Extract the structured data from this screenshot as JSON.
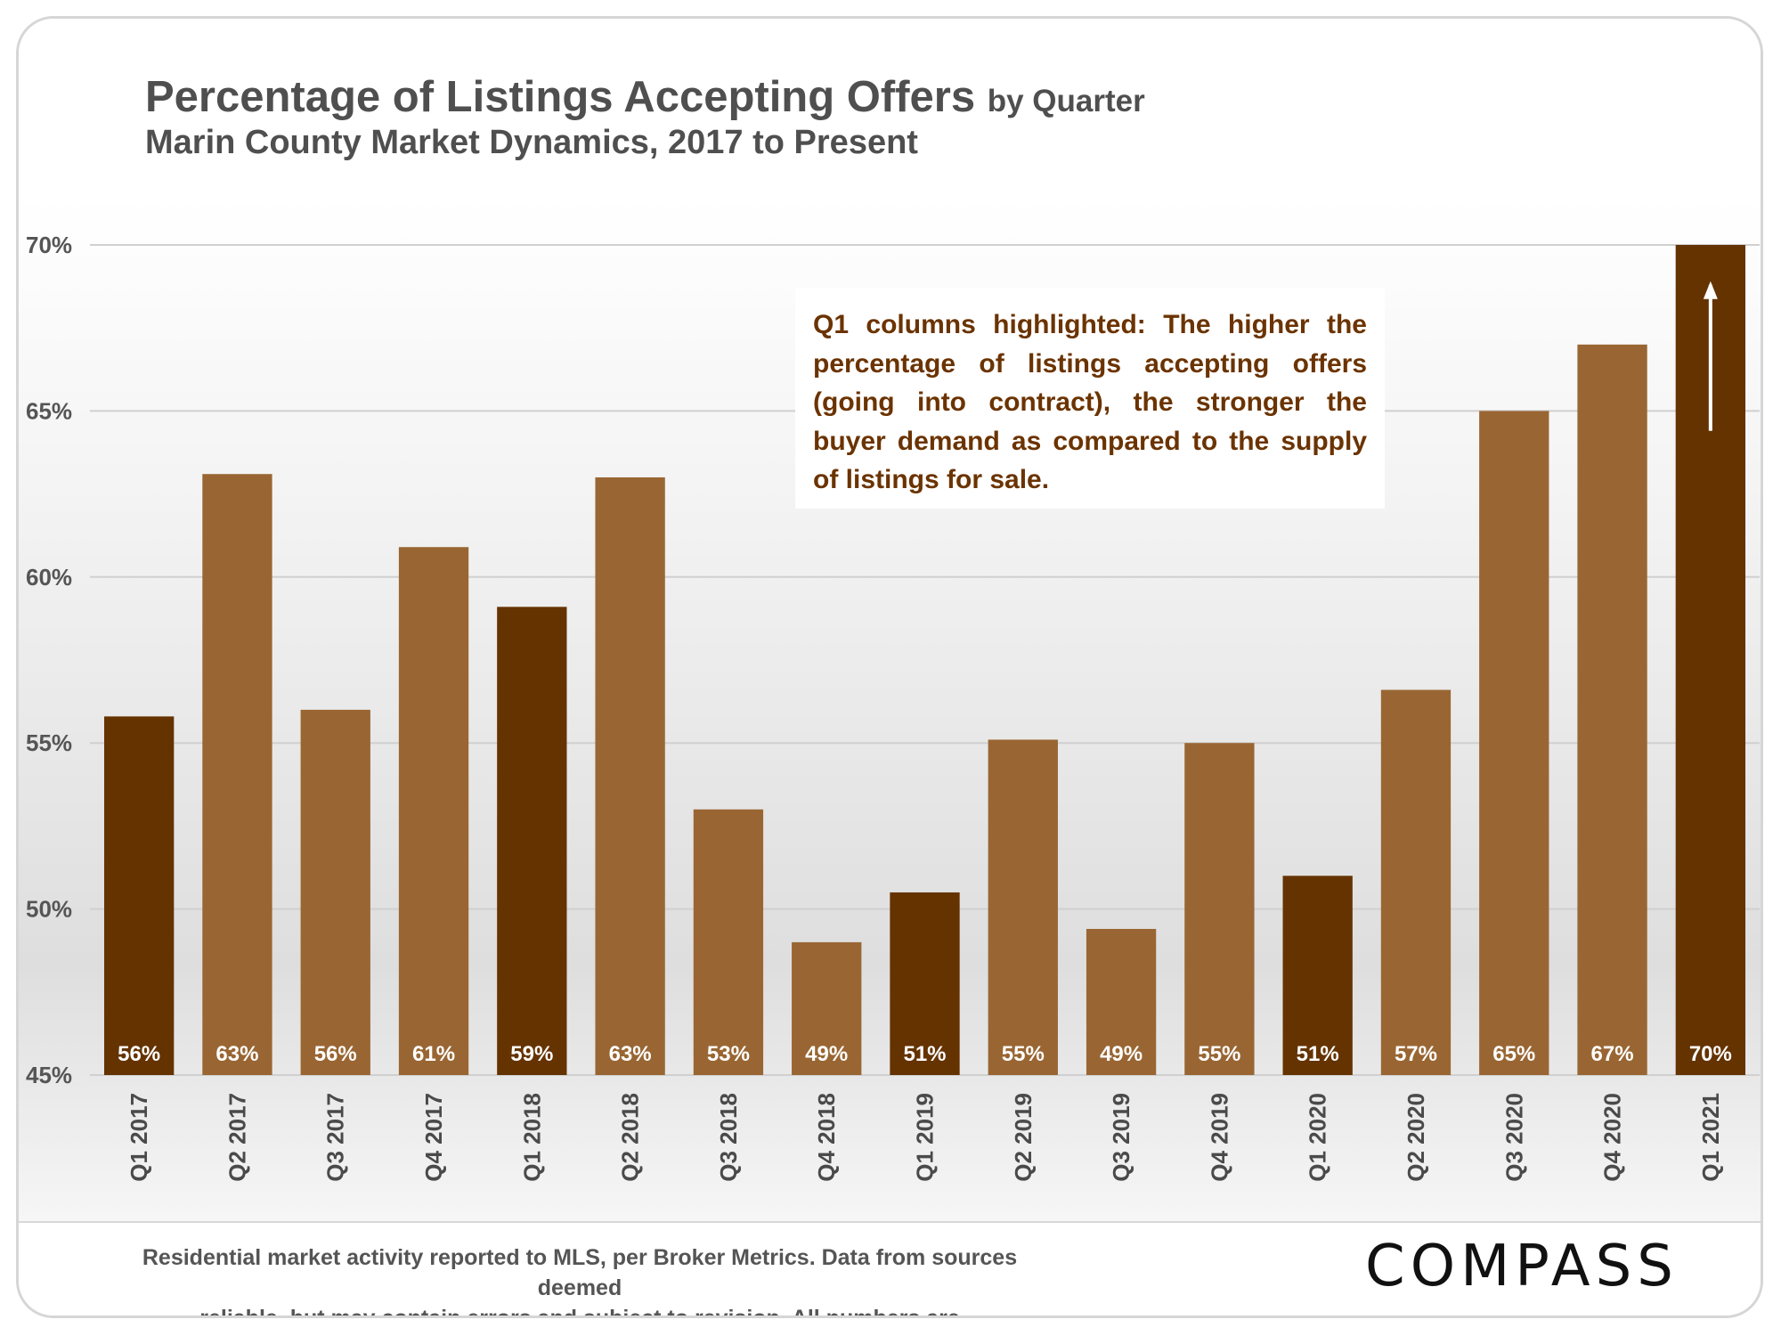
{
  "title": {
    "main": "Percentage of Listings Accepting Offers",
    "suffix": "by Quarter",
    "subtitle": "Marin County Market Dynamics, 2017 to Present"
  },
  "annotation": {
    "text": "Q1 columns highlighted: The higher the percentage of listings accepting offers (going into contract), the stronger the buyer demand as compared to the supply of listings for sale."
  },
  "footer": {
    "note_line1": "Residential market activity reported to MLS, per Broker Metrics. Data from sources deemed",
    "note_line2": "reliable, but may contain errors and subject to revision. All numbers are approximate.",
    "brand": "COMPASS"
  },
  "colors": {
    "highlight": "#653300",
    "regular": "#996633",
    "label": "#ffffff",
    "arrow": "#ffffff"
  },
  "chart_data": {
    "type": "bar",
    "title": "Percentage of Listings Accepting Offers by Quarter",
    "subtitle": "Marin County Market Dynamics, 2017 to Present",
    "categories": [
      "Q1 2017",
      "Q2 2017",
      "Q3 2017",
      "Q4 2017",
      "Q1 2018",
      "Q2 2018",
      "Q3 2018",
      "Q4 2018",
      "Q1 2019",
      "Q2 2019",
      "Q3 2019",
      "Q4 2019",
      "Q1 2020",
      "Q2 2020",
      "Q3 2020",
      "Q4 2020",
      "Q1 2021"
    ],
    "values": [
      55.8,
      63.1,
      56.0,
      60.9,
      59.1,
      63.0,
      53.0,
      49.0,
      50.5,
      55.1,
      49.4,
      55.0,
      51.0,
      56.6,
      65.0,
      67.0,
      70.0
    ],
    "data_labels": [
      "56%",
      "63%",
      "56%",
      "61%",
      "59%",
      "63%",
      "53%",
      "49%",
      "51%",
      "55%",
      "49%",
      "55%",
      "51%",
      "57%",
      "65%",
      "67%",
      "70%"
    ],
    "highlighted": [
      "Q1 2017",
      "Q1 2018",
      "Q1 2019",
      "Q1 2020",
      "Q1 2021"
    ],
    "ylim": [
      45,
      70
    ],
    "yticks": [
      45,
      50,
      55,
      60,
      65,
      70
    ],
    "ytick_labels": [
      "45%",
      "50%",
      "55%",
      "60%",
      "65%",
      "70%"
    ],
    "xlabel": "",
    "ylabel": "",
    "grid": true,
    "legend": "none"
  }
}
